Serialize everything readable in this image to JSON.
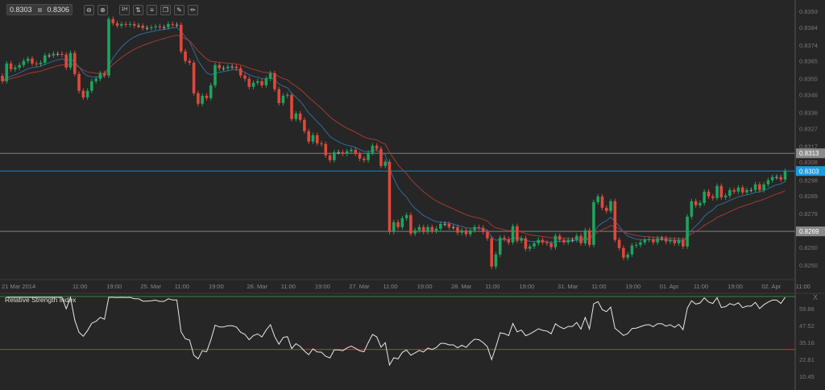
{
  "toolbar": {
    "bid": "0.8303",
    "ask": "0.8306",
    "timeframe": "1H",
    "buttons": [
      "zoom-out-icon",
      "zoom-in-icon",
      "timeframe-icon",
      "chart-type-icon",
      "indicators-icon",
      "objects-icon",
      "draw-tools-icon",
      "pencil-icon"
    ]
  },
  "colors": {
    "background": "#262626",
    "bull": "#1fa35c",
    "bear": "#e0483a",
    "neutral": "#9a9a9a",
    "ma_fast": "#2f6c9e",
    "ma_slow": "#a23a32",
    "current_price": "#1e9be0",
    "level_line": "#8a8a8a",
    "rsi_line": "#e8e8e8",
    "rsi_upper": "#2c8a3e",
    "rsi_lower": "#b2453a"
  },
  "chart_data": [
    {
      "type": "candlestick",
      "interval": "1H",
      "ylim": [
        0.8246,
        0.8399
      ],
      "y_ticks": [
        "0.8393",
        "0.8384",
        "0.8374",
        "0.8365",
        "0.8355",
        "0.8346",
        "0.8336",
        "0.8327",
        "0.8317",
        "0.8308",
        "0.8298",
        "0.8289",
        "0.8279",
        "0.8260",
        "0.8250"
      ],
      "x_ticks": [
        {
          "label": "21 Mar 2014",
          "candle": 0
        },
        {
          "label": "11:00",
          "candle": 18
        },
        {
          "label": "19:00",
          "candle": 26
        },
        {
          "label": "25. Mar",
          "candle": 34
        },
        {
          "label": "11:00",
          "candle": 42
        },
        {
          "label": "19:00",
          "candle": 50
        },
        {
          "label": "26. Mar",
          "candle": 59
        },
        {
          "label": "11:00",
          "candle": 67
        },
        {
          "label": "19:00",
          "candle": 75
        },
        {
          "label": "27. Mar",
          "candle": 83
        },
        {
          "label": "11:00",
          "candle": 91
        },
        {
          "label": "19:00",
          "candle": 99
        },
        {
          "label": "28. Mar",
          "candle": 107
        },
        {
          "label": "11:00",
          "candle": 115
        },
        {
          "label": "19:00",
          "candle": 123
        },
        {
          "label": "31. Mar",
          "candle": 132
        },
        {
          "label": "11:00",
          "candle": 140
        },
        {
          "label": "19:00",
          "candle": 148
        },
        {
          "label": "01. Apr",
          "candle": 156
        },
        {
          "label": "11:00",
          "candle": 164
        },
        {
          "label": "19:00",
          "candle": 172
        },
        {
          "label": "02. Apr",
          "candle": 180
        },
        {
          "label": "11:00",
          "candle": 188
        }
      ],
      "closes": [
        0.83536,
        0.83636,
        0.83604,
        0.83613,
        0.83627,
        0.8365,
        0.83663,
        0.83636,
        0.83631,
        0.8364,
        0.83681,
        0.83681,
        0.8369,
        0.8369,
        0.83686,
        0.83613,
        0.83695,
        0.83577,
        0.83482,
        0.83445,
        0.83482,
        0.83536,
        0.8355,
        0.83581,
        0.83568,
        0.83886,
        0.83863,
        0.83849,
        0.83858,
        0.83854,
        0.83858,
        0.83849,
        0.83849,
        0.83836,
        0.83836,
        0.8384,
        0.83845,
        0.8384,
        0.8384,
        0.83858,
        0.83854,
        0.83854,
        0.83704,
        0.8365,
        0.8364,
        0.83468,
        0.83409,
        0.83454,
        0.83441,
        0.83513,
        0.83627,
        0.83609,
        0.83609,
        0.83618,
        0.83618,
        0.83609,
        0.83568,
        0.8355,
        0.83504,
        0.83527,
        0.83536,
        0.83513,
        0.8355,
        0.83581,
        0.83491,
        0.83413,
        0.83454,
        0.83459,
        0.83323,
        0.83354,
        0.83318,
        0.83255,
        0.83196,
        0.83232,
        0.83186,
        0.83182,
        0.83118,
        0.83091,
        0.83136,
        0.83136,
        0.83127,
        0.83141,
        0.8315,
        0.83127,
        0.831,
        0.83091,
        0.83132,
        0.83173,
        0.83155,
        0.83059,
        0.83082,
        0.82687,
        0.82742,
        0.82714,
        0.82764,
        0.82782,
        0.82678,
        0.82696,
        0.82714,
        0.82687,
        0.82714,
        0.82692,
        0.82705,
        0.82732,
        0.82732,
        0.82714,
        0.82714,
        0.82683,
        0.82696,
        0.82674,
        0.82696,
        0.82714,
        0.8271,
        0.82687,
        0.82651,
        0.82492,
        0.8256,
        0.82655,
        0.82646,
        0.82628,
        0.82719,
        0.82637,
        0.82651,
        0.82592,
        0.82605,
        0.82623,
        0.82642,
        0.82628,
        0.82623,
        0.82601,
        0.82665,
        0.82642,
        0.82628,
        0.82642,
        0.82642,
        0.82665,
        0.82623,
        0.82696,
        0.82614,
        0.82855,
        0.82887,
        0.82823,
        0.82805,
        0.8286,
        0.82642,
        0.82596,
        0.82542,
        0.8256,
        0.8261,
        0.82614,
        0.82628,
        0.82642,
        0.82646,
        0.82628,
        0.82651,
        0.82651,
        0.82633,
        0.82642,
        0.82623,
        0.82642,
        0.82605,
        0.82773,
        0.8286,
        0.82837,
        0.8285,
        0.82914,
        0.82887,
        0.82878,
        0.82946,
        0.82882,
        0.82891,
        0.82923,
        0.82914,
        0.82937,
        0.82909,
        0.82923,
        0.82923,
        0.82955,
        0.82923,
        0.82955,
        0.82978,
        0.82996,
        0.82996,
        0.82982,
        0.8303
      ],
      "price_lines": [
        {
          "label": "0.8313",
          "value": 0.8313,
          "style": "level"
        },
        {
          "label": "0.8303",
          "value": 0.8303,
          "style": "current"
        },
        {
          "label": "0.8269",
          "value": 0.8269,
          "style": "level"
        }
      ]
    },
    {
      "type": "line",
      "title": "Relative Strength Index",
      "ylim": [
        0,
        70
      ],
      "y_ticks": [
        "59.88",
        "47.52",
        "35.16",
        "22.81",
        "10.45"
      ],
      "levels": [
        70,
        30
      ],
      "close_label": "X"
    }
  ]
}
